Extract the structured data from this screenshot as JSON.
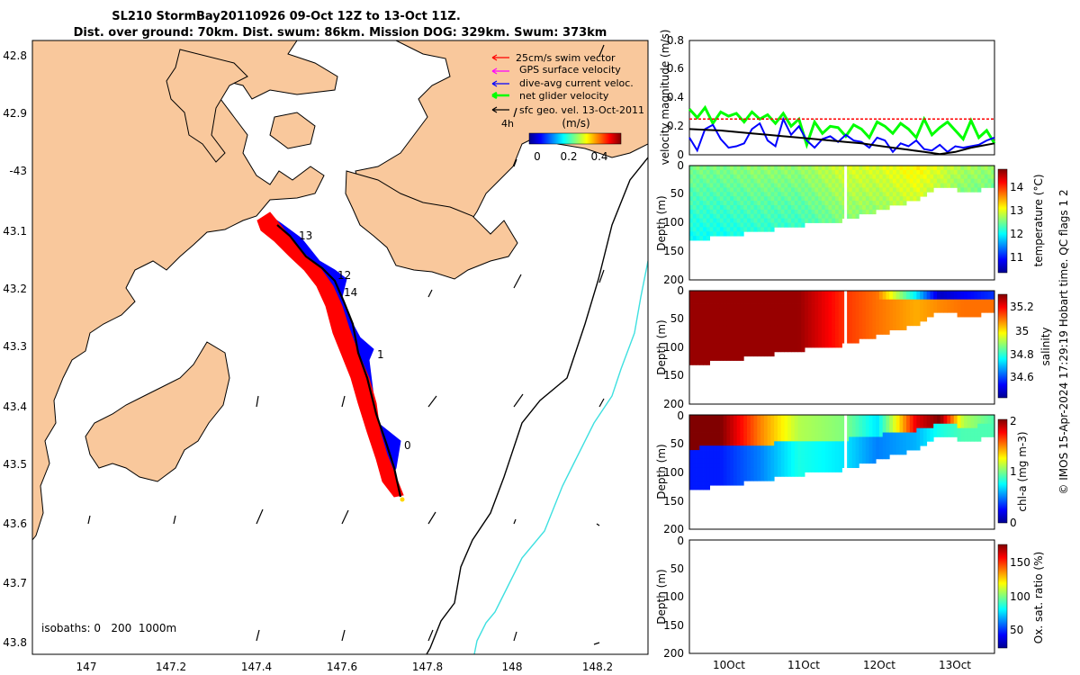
{
  "title": {
    "line1": "SL210 StormBay20110926 09-Oct 12Z to 13-Oct 11Z.",
    "line2": "Dist. over ground: 70km. Dist. swum: 86km. Mission DOG: 329km. Swum: 373km"
  },
  "map": {
    "lat_ticks": [
      "42.8",
      "42.9",
      "-43",
      "43.1",
      "43.2",
      "43.3",
      "43.4",
      "43.5",
      "43.6",
      "43.7",
      "43.8"
    ],
    "lat_values": [
      -42.8,
      -42.9,
      -43.0,
      -43.1,
      -43.2,
      -43.3,
      -43.4,
      -43.5,
      -43.6,
      -43.7,
      -43.8
    ],
    "lon_ticks": [
      "147",
      "147.2",
      "147.4",
      "147.6",
      "147.8",
      "148",
      "148.2"
    ],
    "lon_values": [
      147.0,
      147.2,
      147.4,
      147.6,
      147.8,
      148.0,
      148.2
    ],
    "legend": [
      {
        "label": "25cm/s swim vector",
        "color": "#ff0000"
      },
      {
        "label": "GPS surface velocity",
        "color": "#ff00ff"
      },
      {
        "label": "dive-avg current veloc.",
        "color": "#0000ff"
      },
      {
        "label": "net glider velocity",
        "color": "#00ff00"
      },
      {
        "label": "sfc geo. vel. 13-Oct-2011",
        "color": "#000000"
      }
    ],
    "legend_extra": "4h",
    "colorbar_title": "(m/s)",
    "colorbar_ticks": [
      "0",
      "0.2",
      "0.4"
    ],
    "day_labels": [
      "0",
      "1",
      "12",
      "13",
      "14"
    ],
    "isobath_label": "isobaths: 0   200  1000m",
    "colors": {
      "land": "#f9c89c",
      "sea": "#ffffff",
      "isobath_200": "#000000",
      "isobath_1000": "#3ee0e0",
      "track": "#000000",
      "swim": "#ff0000",
      "current": "#0000ff"
    }
  },
  "chart_data": [
    {
      "type": "line",
      "ylabel": "velocity magnitude (m/s)",
      "ylim": [
        0,
        0.8
      ],
      "yticks": [
        "0",
        "0.2",
        "0.4",
        "0.6",
        "0.8"
      ],
      "xlim": [
        9.6,
        13.5
      ],
      "series": [
        {
          "name": "net glider velocity",
          "color": "#00ff00",
          "x": [
            9.6,
            9.7,
            9.8,
            9.9,
            10.0,
            10.1,
            10.2,
            10.3,
            10.4,
            10.5,
            10.6,
            10.7,
            10.8,
            10.9,
            11.0,
            11.1,
            11.2,
            11.3,
            11.4,
            11.5,
            11.6,
            11.7,
            11.8,
            11.9,
            12.0,
            12.1,
            12.2,
            12.3,
            12.4,
            12.5,
            12.6,
            12.7,
            12.8,
            12.9,
            13.0,
            13.1,
            13.2,
            13.3,
            13.4,
            13.5
          ],
          "y": [
            0.32,
            0.26,
            0.33,
            0.22,
            0.3,
            0.27,
            0.29,
            0.23,
            0.3,
            0.25,
            0.28,
            0.22,
            0.29,
            0.2,
            0.25,
            0.07,
            0.23,
            0.15,
            0.2,
            0.19,
            0.13,
            0.21,
            0.18,
            0.12,
            0.23,
            0.2,
            0.15,
            0.22,
            0.18,
            0.12,
            0.25,
            0.14,
            0.19,
            0.23,
            0.17,
            0.11,
            0.24,
            0.12,
            0.17,
            0.08
          ]
        },
        {
          "name": "dive-avg current",
          "color": "#0000ff",
          "x": [
            9.6,
            9.7,
            9.8,
            9.9,
            10.0,
            10.1,
            10.2,
            10.3,
            10.4,
            10.5,
            10.6,
            10.7,
            10.8,
            10.9,
            11.0,
            11.1,
            11.2,
            11.3,
            11.4,
            11.5,
            11.6,
            11.7,
            11.8,
            11.9,
            12.0,
            12.1,
            12.2,
            12.3,
            12.4,
            12.5,
            12.6,
            12.7,
            12.8,
            12.9,
            13.0,
            13.1,
            13.2,
            13.3,
            13.4,
            13.5
          ],
          "y": [
            0.12,
            0.03,
            0.18,
            0.21,
            0.11,
            0.05,
            0.06,
            0.08,
            0.18,
            0.22,
            0.1,
            0.06,
            0.25,
            0.14,
            0.2,
            0.1,
            0.05,
            0.11,
            0.13,
            0.09,
            0.14,
            0.1,
            0.09,
            0.05,
            0.12,
            0.1,
            0.02,
            0.08,
            0.06,
            0.1,
            0.04,
            0.03,
            0.07,
            0.02,
            0.06,
            0.05,
            0.06,
            0.07,
            0.1,
            0.12
          ]
        },
        {
          "name": "swim speed",
          "color": "#ff0000",
          "x": [
            9.6,
            10.2,
            10.6,
            11.0,
            11.6,
            12.0,
            12.6,
            13.0,
            13.5
          ],
          "y": [
            0.25,
            0.25,
            0.25,
            0.25,
            0.25,
            0.25,
            0.25,
            0.25,
            0.25
          ]
        },
        {
          "name": "surface geostrophic",
          "color": "#000000",
          "x": [
            9.6,
            9.8,
            10.0,
            10.2,
            10.4,
            10.6,
            10.8,
            11.0,
            11.2,
            11.4,
            11.6,
            11.8,
            12.0,
            12.2,
            12.4,
            12.6,
            12.8,
            13.0,
            13.2,
            13.5
          ],
          "y": [
            0.18,
            0.175,
            0.17,
            0.16,
            0.15,
            0.14,
            0.13,
            0.12,
            0.11,
            0.1,
            0.09,
            0.08,
            0.065,
            0.05,
            0.035,
            0.02,
            0.005,
            0.02,
            0.05,
            0.08
          ]
        }
      ]
    },
    {
      "type": "heatmap",
      "variable": "temperature",
      "ylabel": "Depth (m)",
      "ylim": [
        0,
        200
      ],
      "yticks": [
        "0",
        "50",
        "100",
        "150",
        "200"
      ],
      "colorbar_label": "temperature (°C)",
      "colorbar_ticks": [
        "11",
        "12",
        "13",
        "14"
      ],
      "colorbar_values": [
        11,
        12,
        13,
        14
      ],
      "clim": [
        10.4,
        14.8
      ],
      "x": [
        9.6,
        10.0,
        10.5,
        11.0,
        11.6,
        12.0,
        12.5,
        12.8,
        13.1,
        13.5
      ],
      "max_depth": [
        130,
        125,
        115,
        105,
        95,
        80,
        60,
        35,
        45,
        40
      ],
      "values": [
        12.6,
        12.6,
        12.7,
        12.7,
        13.0,
        13.0,
        13.2,
        13.0,
        12.8,
        12.7
      ]
    },
    {
      "type": "heatmap",
      "variable": "salinity",
      "ylabel": "Depth (m)",
      "ylim": [
        0,
        200
      ],
      "yticks": [
        "0",
        "50",
        "100",
        "150",
        "200"
      ],
      "colorbar_label": "salinity",
      "colorbar_ticks": [
        "34.6",
        "34.8",
        "35",
        "35.2"
      ],
      "colorbar_values": [
        34.6,
        34.8,
        35.0,
        35.2
      ],
      "clim": [
        34.45,
        35.3
      ],
      "x": [
        9.6,
        10.0,
        10.5,
        11.0,
        11.6,
        12.0,
        12.5,
        12.8,
        13.1,
        13.5
      ],
      "max_depth": [
        130,
        125,
        115,
        105,
        95,
        80,
        60,
        35,
        45,
        40
      ],
      "values": [
        35.28,
        35.28,
        35.28,
        35.28,
        35.15,
        35.1,
        35.05,
        35.08,
        35.1,
        35.1
      ],
      "surface_values": [
        35.28,
        35.28,
        35.28,
        35.28,
        35.15,
        35.1,
        34.75,
        34.5,
        34.55,
        34.6
      ]
    },
    {
      "type": "heatmap",
      "variable": "chl-a",
      "ylabel": "Depth (m)",
      "ylim": [
        0,
        200
      ],
      "yticks": [
        "0",
        "50",
        "100",
        "150",
        "200"
      ],
      "colorbar_label": "chl-a (mg m-3)",
      "colorbar_ticks": [
        "0",
        "1",
        "2"
      ],
      "colorbar_values": [
        0,
        1,
        2
      ],
      "clim": [
        0,
        2
      ],
      "x": [
        9.6,
        10.0,
        10.5,
        11.0,
        11.6,
        12.0,
        12.5,
        12.8,
        13.1,
        13.5
      ],
      "max_depth": [
        130,
        125,
        115,
        105,
        95,
        80,
        60,
        35,
        45,
        40
      ],
      "values": [
        2.0,
        2.0,
        1.5,
        1.1,
        1.0,
        0.7,
        1.8,
        2.0,
        1.1,
        0.9
      ],
      "deep_values": [
        0.3,
        0.3,
        0.5,
        0.8,
        0.7,
        0.5,
        0.6,
        0.8,
        0.9,
        0.9
      ]
    },
    {
      "type": "heatmap",
      "variable": "oxygen",
      "ylabel": "Depth (m)",
      "ylim": [
        0,
        200
      ],
      "yticks": [
        "0",
        "50",
        "100",
        "150",
        "200"
      ],
      "colorbar_label": "Ox. sat. ratio (%)",
      "colorbar_ticks": [
        "50",
        "100",
        "150"
      ],
      "colorbar_values": [
        50,
        100,
        150
      ],
      "clim": [
        20,
        175
      ],
      "xticks": [
        "10Oct",
        "11Oct",
        "12Oct",
        "13Oct"
      ],
      "xtick_values": [
        10,
        11,
        12,
        13
      ]
    }
  ],
  "footer": "© IMOS 15-Apr-2024 17:29:19 Hobart time. QC flags 1  2"
}
